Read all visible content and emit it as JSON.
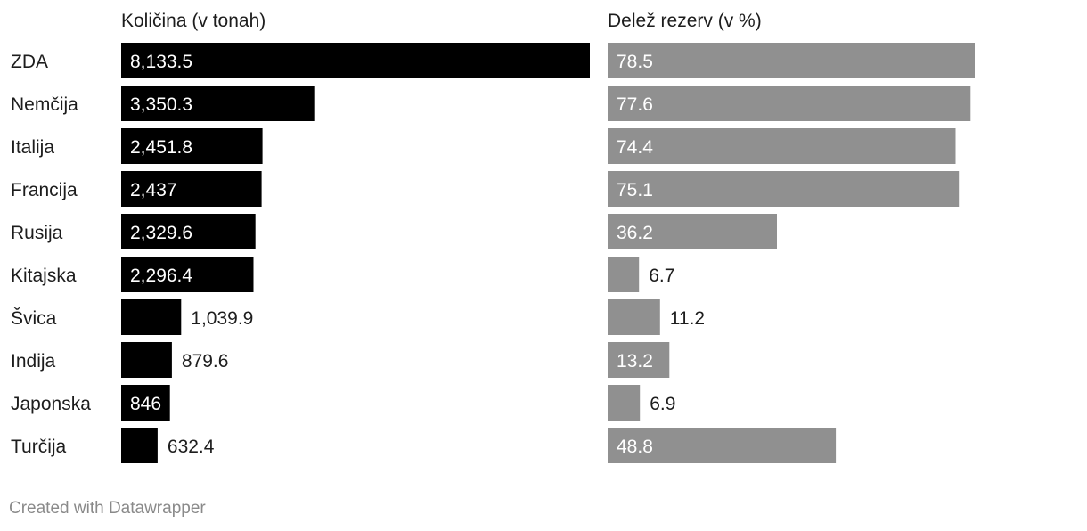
{
  "chart_data": {
    "type": "bar",
    "orientation": "horizontal",
    "categories": [
      "ZDA",
      "Nemčija",
      "Italija",
      "Francija",
      "Rusija",
      "Kitajska",
      "Švica",
      "Indija",
      "Japonska",
      "Turčija"
    ],
    "series": [
      {
        "name": "Količina (v tonah)",
        "color": "#000000",
        "values": [
          8133.5,
          3350.3,
          2451.8,
          2437,
          2329.6,
          2296.4,
          1039.9,
          879.6,
          846,
          632.4
        ],
        "labels": [
          "8,133.5",
          "3,350.3",
          "2,451.8",
          "2,437",
          "2,329.6",
          "2,296.4",
          "1,039.9",
          "879.6",
          "846",
          "632.4"
        ]
      },
      {
        "name": "Delež rezerv (v %)",
        "color": "#909090",
        "values": [
          78.5,
          77.6,
          74.4,
          75.1,
          36.2,
          6.7,
          11.2,
          13.2,
          6.9,
          48.8
        ],
        "labels": [
          "78.5",
          "77.6",
          "74.4",
          "75.1",
          "36.2",
          "6.7",
          "11.2",
          "13.2",
          "6.9",
          "48.8"
        ]
      }
    ],
    "grid": false,
    "legend": "none"
  },
  "footer": "Created with Datawrapper"
}
